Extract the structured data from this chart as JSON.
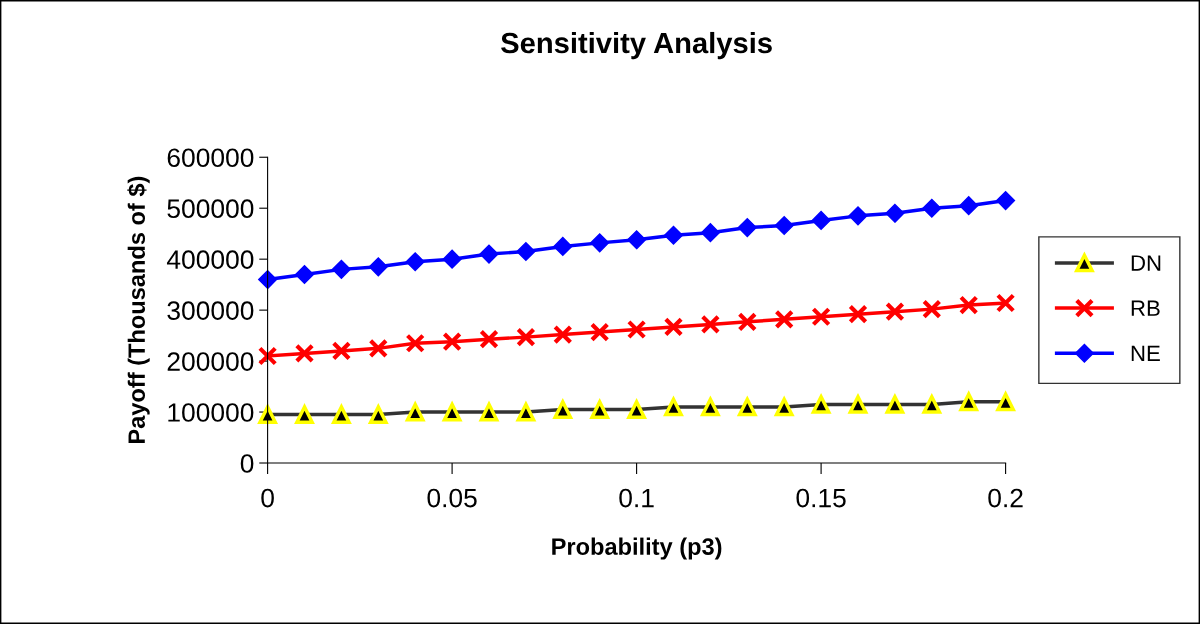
{
  "chart_data": {
    "type": "line",
    "title": "Sensitivity Analysis",
    "xlabel": "Probability (p3)",
    "ylabel": "Payoff (Thousands of $)",
    "x": [
      0,
      0.01,
      0.02,
      0.03,
      0.04,
      0.05,
      0.06,
      0.07,
      0.08,
      0.09,
      0.1,
      0.11,
      0.12,
      0.13,
      0.14,
      0.15,
      0.16,
      0.17,
      0.18,
      0.19,
      0.2
    ],
    "series": [
      {
        "name": "DN",
        "color": "#333333",
        "marker": "triangle",
        "values": [
          95000,
          95000,
          95000,
          95000,
          100000,
          100000,
          100000,
          100000,
          105000,
          105000,
          105000,
          110000,
          110000,
          110000,
          110000,
          115000,
          115000,
          115000,
          115000,
          120000,
          120000
        ]
      },
      {
        "name": "RB",
        "color": "#ff0000",
        "marker": "cross",
        "values": [
          210000,
          215000,
          220000,
          225000,
          235000,
          238000,
          243000,
          247000,
          252000,
          257000,
          262000,
          267000,
          272000,
          277000,
          282000,
          287000,
          292000,
          297000,
          302000,
          310000,
          314000
        ]
      },
      {
        "name": "NE",
        "color": "#0000ff",
        "marker": "diamond",
        "values": [
          360000,
          370000,
          380000,
          385000,
          395000,
          400000,
          410000,
          415000,
          425000,
          432000,
          438000,
          447000,
          452000,
          462000,
          466000,
          476000,
          485000,
          490000,
          500000,
          505000,
          515000
        ]
      }
    ],
    "xlim": [
      0,
      0.2
    ],
    "xticks": [
      0,
      0.05,
      0.1,
      0.15,
      0.2
    ],
    "ylim": [
      0,
      600000
    ],
    "yticks": [
      0,
      100000,
      200000,
      300000,
      400000,
      500000,
      600000
    ],
    "grid": false,
    "legend": "right"
  }
}
